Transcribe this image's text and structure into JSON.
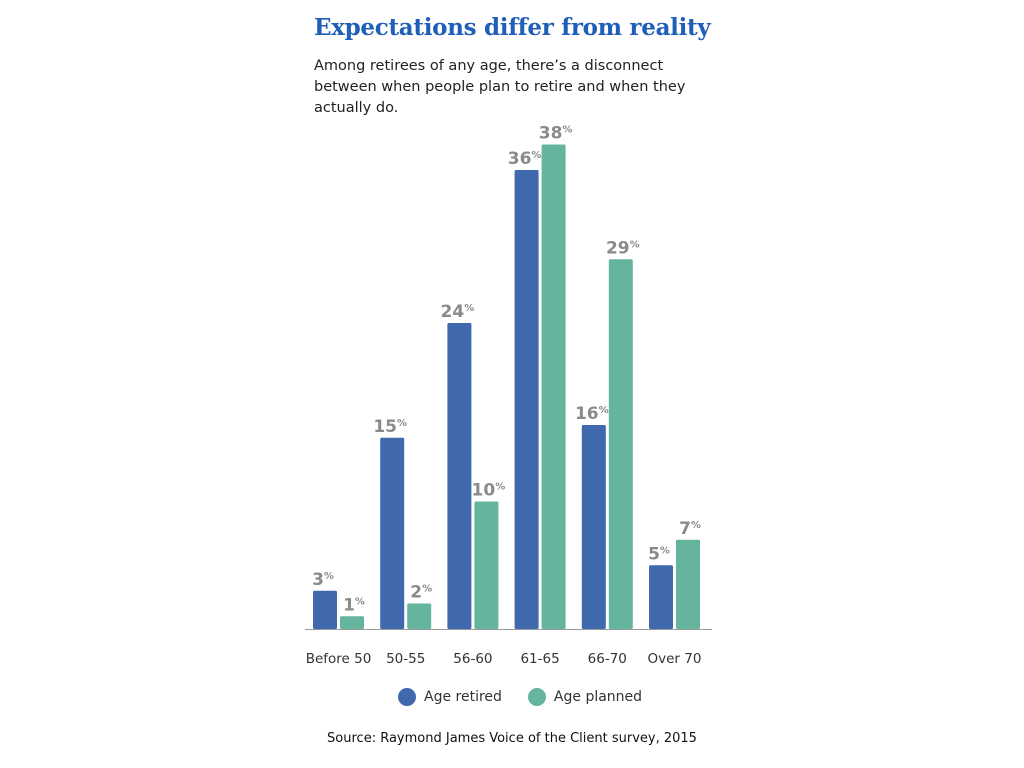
{
  "chart_data": {
    "type": "bar",
    "title": "Expectations differ from reality",
    "subtitle": "Among retirees of any age, there’s a disconnect between when people plan to retire and when they actually do.",
    "categories": [
      "Before 50",
      "50-55",
      "56-60",
      "61-65",
      "66-70",
      "Over 70"
    ],
    "series": [
      {
        "name": "Age retired",
        "values": [
          3,
          15,
          24,
          36,
          16,
          5
        ],
        "color": "#3f68ad"
      },
      {
        "name": "Age planned",
        "values": [
          1,
          2,
          10,
          38,
          29,
          7
        ],
        "color": "#64b49e"
      }
    ],
    "value_suffix": "%",
    "ylim": [
      0,
      40
    ],
    "grid": false,
    "legend": "bottom",
    "xlabel": "",
    "ylabel": "",
    "source": "Source: Raymond James Voice of the Client survey, 2015",
    "label_color": "#8a8a8a"
  }
}
